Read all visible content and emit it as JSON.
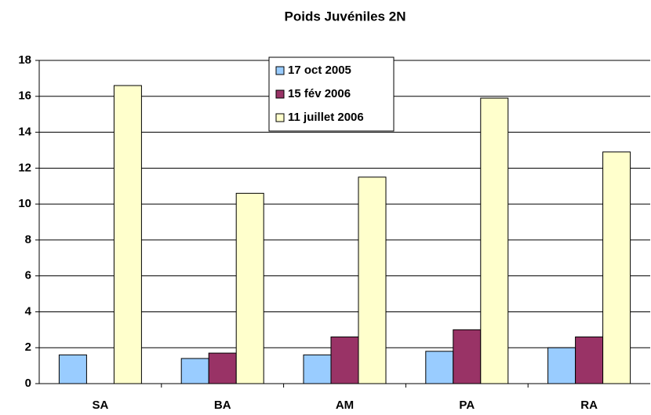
{
  "chart_data": {
    "type": "bar",
    "title": "Poids Juvéniles 2N",
    "categories": [
      "SA",
      "BA",
      "AM",
      "PA",
      "RA"
    ],
    "series": [
      {
        "name": "17 oct 2005",
        "color": "#99ccff",
        "values": [
          1.6,
          1.4,
          1.6,
          1.8,
          2.0
        ]
      },
      {
        "name": "15 fév 2006",
        "color": "#993366",
        "values": [
          null,
          1.7,
          2.6,
          3.0,
          2.6
        ]
      },
      {
        "name": "11 juillet 2006",
        "color": "#ffffcc",
        "values": [
          16.6,
          10.6,
          11.5,
          15.9,
          12.9
        ]
      }
    ],
    "ylim": [
      0,
      18
    ],
    "yticks": [
      0,
      2,
      4,
      6,
      8,
      10,
      12,
      14,
      16,
      18
    ],
    "grid": true,
    "legend": "top"
  }
}
